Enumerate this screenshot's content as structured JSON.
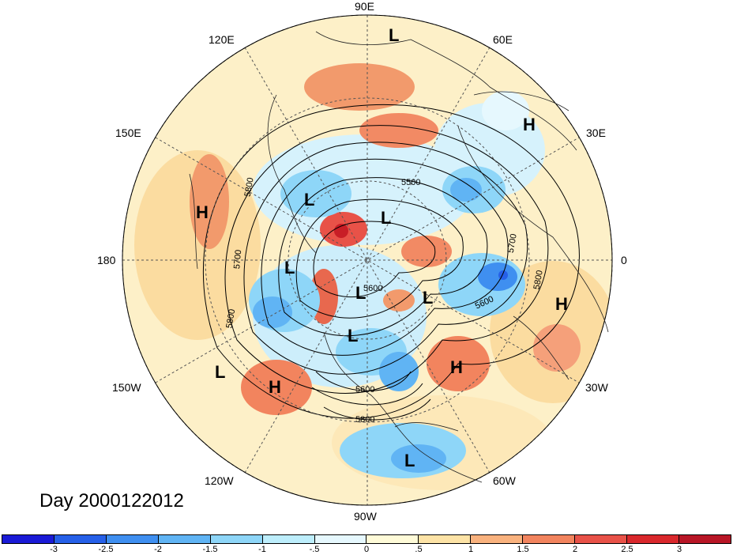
{
  "title": "Day 2000122012",
  "longitude_labels": {
    "e90": "90E",
    "e60": "60E",
    "e30": "30E",
    "zero": "0",
    "w30": "30W",
    "w60": "60W",
    "w90": "90W",
    "w120": "120W",
    "w150": "150W",
    "dateline": "180",
    "e150": "150E",
    "e120": "120E"
  },
  "pressure_centers": [
    "L",
    "L",
    "L",
    "L",
    "L",
    "L",
    "L",
    "L",
    "L",
    "L",
    "H",
    "H",
    "H",
    "H",
    "H",
    "H"
  ],
  "contour_labels": [
    "5500",
    "5800",
    "5700",
    "5800",
    "5600",
    "5600",
    "5700",
    "5800",
    "5600",
    "5800"
  ],
  "colorbar": {
    "colors": [
      "#1a1ad6",
      "#2660e8",
      "#3f8ff0",
      "#60b4f4",
      "#8ed6f8",
      "#bdeefc",
      "#e6f8fe",
      "#fffbd8",
      "#fde3a6",
      "#f9b27e",
      "#f2845e",
      "#e85248",
      "#d9282c",
      "#b81626"
    ],
    "ticks": [
      "-3",
      "-2.5",
      "-2",
      "-1.5",
      "-1",
      "-.5",
      "0",
      ".5",
      "1",
      "1.5",
      "2",
      "2.5",
      "3"
    ]
  }
}
